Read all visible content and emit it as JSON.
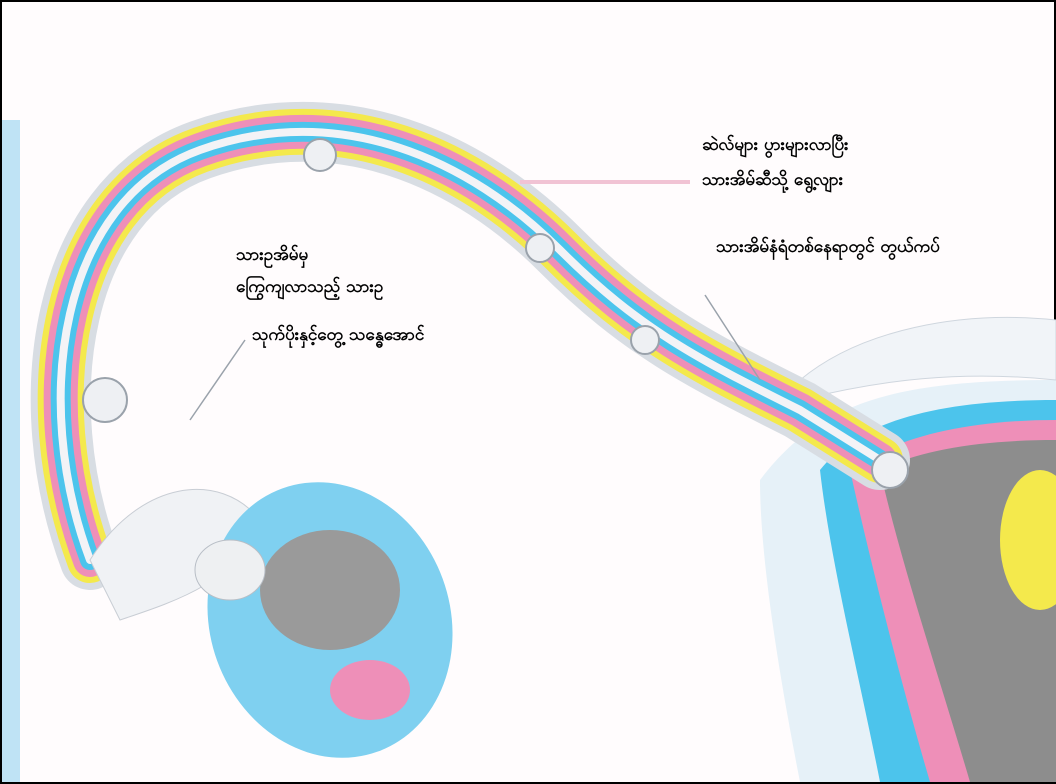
{
  "labels": [
    {
      "lines": [
        "ဆဲလ်များ ပွားများလာပြီး",
        "သားအိမ်ဆီသို့ ရွေ့လျား"
      ]
    },
    {
      "lines": [
        "သားအိမ်နံရံတစ်နေရာတွင် တွယ်ကပ်"
      ]
    },
    {
      "lines": [
        "သားဥအိမ်မှ",
        "ကြွေကျလာသည့် သားဥ"
      ]
    },
    {
      "lines": [
        "သုက်ပိုးနှင့်တွေ့ သန္ဓေအောင်"
      ]
    }
  ]
}
